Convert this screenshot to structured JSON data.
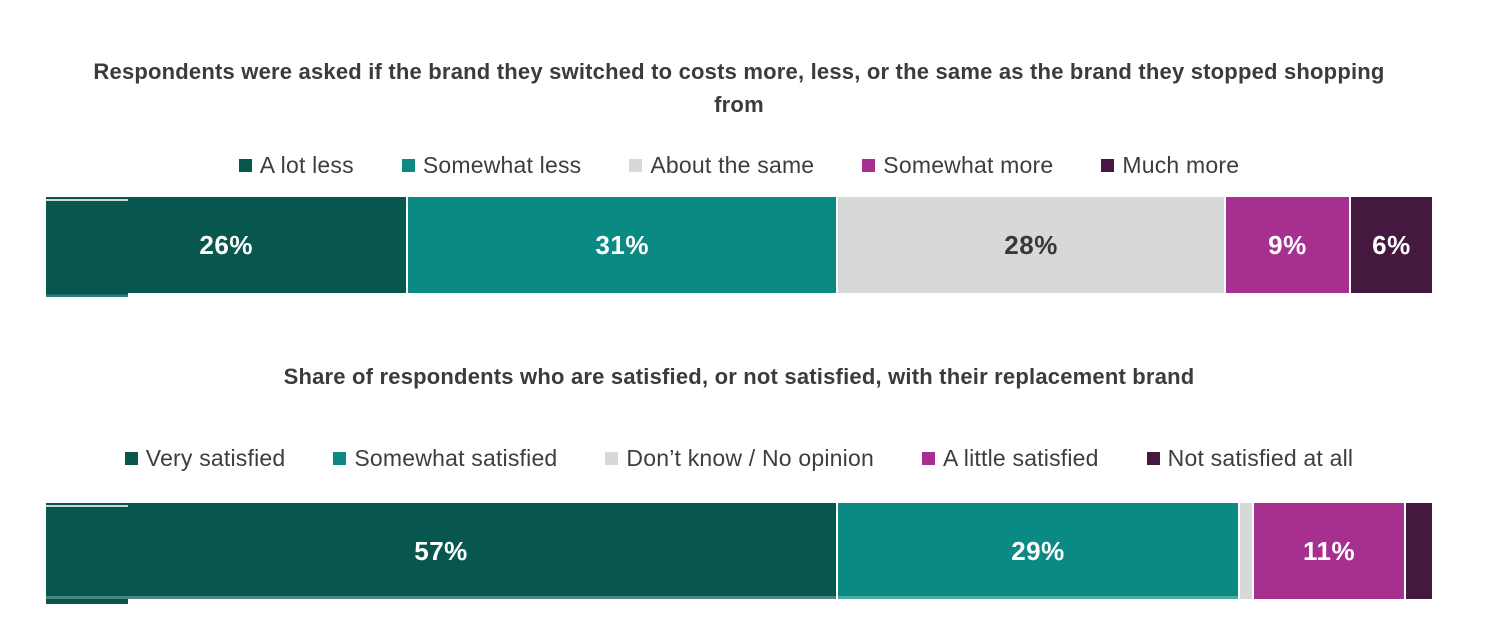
{
  "colors": {
    "background": "#ffffff",
    "title_text": "#3b3b3b",
    "legend_text": "#3d3d3d",
    "separator": "#ffffff",
    "dark_teal": "#07574f",
    "teal": "#0a8a83",
    "light_gray": "#d6d9d8",
    "magenta": "#a72f8f",
    "dark_purple": "#451840"
  },
  "chart_data": [
    {
      "type": "bar",
      "variant": "horizontal-stacked",
      "title": "Respondents were asked if the brand they switched to costs more, less, or the same as the brand they stopped shopping from",
      "legend_position": "top",
      "grid": false,
      "xlim": [
        0,
        100
      ],
      "categories": [
        "A lot less",
        "Somewhat less",
        "About the same",
        "Somewhat more",
        "Much more"
      ],
      "values": [
        26,
        31,
        28,
        9,
        6
      ],
      "data_labels": [
        "26%",
        "31%",
        "28%",
        "9%",
        "6%"
      ],
      "colors": [
        "#07574f",
        "#0a8a83",
        "#d6d9d8",
        "#a72f8f",
        "#451840"
      ],
      "label_colors": [
        "#ffffff",
        "#ffffff",
        "#383838",
        "#ffffff",
        "#ffffff"
      ]
    },
    {
      "type": "bar",
      "variant": "horizontal-stacked",
      "title": "Share of respondents who are satisfied, or not satisfied, with their replacement brand",
      "legend_position": "top",
      "grid": false,
      "xlim": [
        0,
        100
      ],
      "categories": [
        "Very satisfied",
        "Somewhat satisfied",
        "Don’t know / No opinion",
        "A little satisfied",
        "Not satisfied at all"
      ],
      "values": [
        57,
        29,
        1,
        11,
        2
      ],
      "data_labels": [
        "57%",
        "29%",
        "",
        "11%",
        ""
      ],
      "colors": [
        "#07574f",
        "#0a8a83",
        "#d6d9d8",
        "#a72f8f",
        "#451840"
      ],
      "label_colors": [
        "#ffffff",
        "#ffffff",
        "#383838",
        "#ffffff",
        "#ffffff"
      ]
    }
  ]
}
